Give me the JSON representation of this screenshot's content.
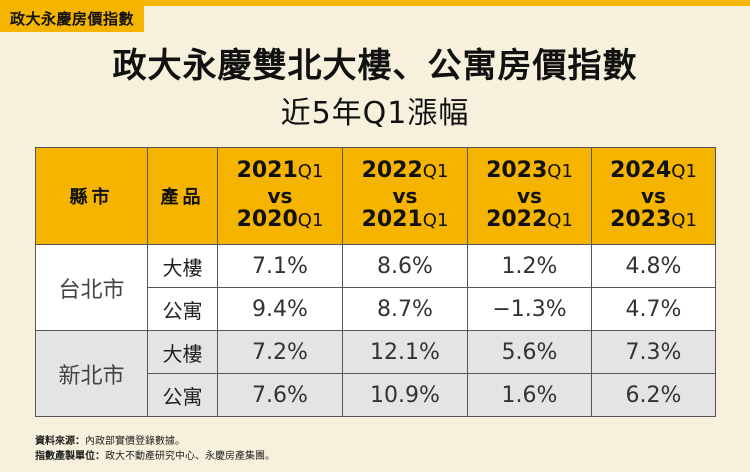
{
  "brand": "政大永慶房價指數",
  "title": "政大永慶雙北大樓、公寓房價指數",
  "subtitle": "近5年Q1漲幅",
  "table": {
    "headers": {
      "col1": "縣市",
      "col2": "產品",
      "periods": [
        {
          "top_year": "2021",
          "top_q": "Q1",
          "vs": "vs",
          "bottom_year": "2020",
          "bottom_q": "Q1"
        },
        {
          "top_year": "2022",
          "top_q": "Q1",
          "vs": "vs",
          "bottom_year": "2021",
          "bottom_q": "Q1"
        },
        {
          "top_year": "2023",
          "top_q": "Q1",
          "vs": "vs",
          "bottom_year": "2022",
          "bottom_q": "Q1"
        },
        {
          "top_year": "2024",
          "top_q": "Q1",
          "vs": "vs",
          "bottom_year": "2023",
          "bottom_q": "Q1"
        }
      ]
    },
    "groups": [
      {
        "city": "台北市",
        "rows": [
          {
            "product": "大樓",
            "values": [
              "7.1%",
              "8.6%",
              "1.2%",
              "4.8%"
            ]
          },
          {
            "product": "公寓",
            "values": [
              "9.4%",
              "8.7%",
              "−1.3%",
              "4.7%"
            ]
          }
        ]
      },
      {
        "city": "新北市",
        "rows": [
          {
            "product": "大樓",
            "values": [
              "7.2%",
              "12.1%",
              "5.6%",
              "7.3%"
            ]
          },
          {
            "product": "公寓",
            "values": [
              "7.6%",
              "10.9%",
              "1.6%",
              "6.2%"
            ]
          }
        ]
      }
    ]
  },
  "footnotes": {
    "source_label": "資料來源：",
    "source_text": "內政部實價登錄數據。",
    "producer_label": "指數產製單位：",
    "producer_text": "政大不動產研究中心、永慶房產集團。"
  },
  "colors": {
    "accent": "#f5b400",
    "background": "#f7f0dc",
    "row_white": "#ffffff",
    "row_gray": "#e4e4e4"
  }
}
